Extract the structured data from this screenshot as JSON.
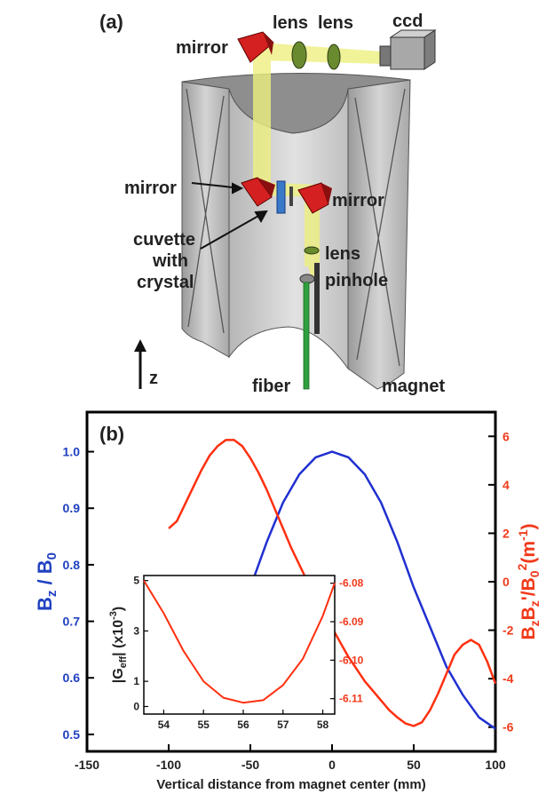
{
  "panel_a": {
    "panel_label": "(a)",
    "labels": {
      "mirror_top": "mirror",
      "lens_1": "lens",
      "lens_2": "lens",
      "ccd": "ccd",
      "mirror_left": "mirror",
      "mirror_right": "mirror",
      "cuvette_line1": "cuvette",
      "cuvette_line2": "with",
      "cuvette_line3": "crystal",
      "lens_lower": "lens",
      "pinhole": "pinhole",
      "fiber": "fiber",
      "magnet": "magnet",
      "z_axis": "z"
    },
    "colors": {
      "magnet_gray": "#c8c8c8",
      "mirror_red": "#d42020",
      "cuvette_blue": "#3a78c8",
      "beam_yellow": "#eef080",
      "fiber_green": "#2fa040"
    }
  },
  "panel_b": {
    "panel_label": "(b)",
    "chart_data": {
      "type": "line",
      "xlabel": "Vertical distance from magnet center (mm)",
      "ylabel_left": {
        "main": "B",
        "sub": "z",
        "rest": " / B",
        "sub2": "0"
      },
      "ylabel_right": {
        "p1": "B",
        "s1": "z",
        "p2": "B",
        "s2": "z",
        "p3": "'/B",
        "s3": "0",
        "sup3": "2",
        "p4": "(m",
        "sup4": "-1",
        "p5": ")"
      },
      "xlim": [
        -150,
        100
      ],
      "ylim_left": [
        0.47,
        1.07
      ],
      "ylim_right": [
        -7,
        7
      ],
      "x_ticks": [
        "-150",
        "-100",
        "-50",
        "0",
        "50",
        "100"
      ],
      "y_left_ticks": [
        "0.5",
        "0.6",
        "0.7",
        "0.8",
        "0.9",
        "1.0"
      ],
      "y_right_ticks": [
        "-6",
        "-4",
        "-2",
        "0",
        "2",
        "4",
        "6"
      ],
      "colors": {
        "left_axis": "#2040c0",
        "right_axis": "#f03a1a"
      },
      "series": [
        {
          "axis": "left",
          "color": "#2030d0",
          "x": [
            -57,
            -50,
            -40,
            -30,
            -20,
            -10,
            0,
            10,
            20,
            30,
            40,
            50,
            60,
            70,
            80,
            90,
            100
          ],
          "y": [
            0.7,
            0.76,
            0.84,
            0.91,
            0.96,
            0.99,
            1.0,
            0.99,
            0.96,
            0.91,
            0.84,
            0.76,
            0.69,
            0.62,
            0.57,
            0.53,
            0.51
          ]
        },
        {
          "axis": "right",
          "color": "#ff3010",
          "x": [
            -100,
            -95,
            -90,
            -85,
            -80,
            -75,
            -70,
            -65,
            -60,
            -55,
            -50,
            -45,
            -40,
            -35,
            -30,
            -25,
            -20,
            -15,
            -10,
            -5,
            0,
            5,
            10,
            15,
            20,
            25,
            30,
            35,
            40,
            45,
            50,
            55,
            60,
            65,
            70,
            75,
            80,
            85,
            90,
            95,
            100
          ],
          "y": [
            2.2,
            2.5,
            3.2,
            3.9,
            4.6,
            5.2,
            5.6,
            5.85,
            5.85,
            5.6,
            5.1,
            4.5,
            3.8,
            3.0,
            2.2,
            1.4,
            0.7,
            0.0,
            -0.7,
            -1.3,
            -1.9,
            -2.5,
            -3.1,
            -3.6,
            -4.1,
            -4.5,
            -4.9,
            -5.3,
            -5.6,
            -5.85,
            -5.95,
            -5.8,
            -5.3,
            -4.6,
            -3.8,
            -3.0,
            -2.6,
            -2.4,
            -2.6,
            -3.3,
            -4.2
          ]
        }
      ]
    },
    "inset": {
      "chart_data": {
        "type": "line",
        "ylabel_left": {
          "p1": "|G",
          "sub": "eff",
          "p2": "| (x10",
          "sup": "-3",
          "p3": ")"
        },
        "xlim": [
          53.5,
          58.3
        ],
        "ylim_left": [
          -0.3,
          5.2
        ],
        "ylim_right": [
          -6.114,
          -6.078
        ],
        "x_ticks": [
          "54",
          "55",
          "56",
          "57",
          "58"
        ],
        "y_left_ticks": [
          "0",
          "1",
          "3",
          "5"
        ],
        "y_right_ticks": [
          "-6.08",
          "-6.09",
          "-6.10",
          "-6.11"
        ],
        "series": [
          {
            "color": "#ff3010",
            "x": [
              53.5,
              54,
              54.5,
              55,
              55.5,
              56,
              56.5,
              57,
              57.5,
              58,
              58.3
            ],
            "y": [
              5.0,
              3.7,
              2.2,
              1.0,
              0.35,
              0.15,
              0.25,
              0.85,
              1.9,
              3.6,
              4.9
            ]
          }
        ]
      }
    }
  }
}
